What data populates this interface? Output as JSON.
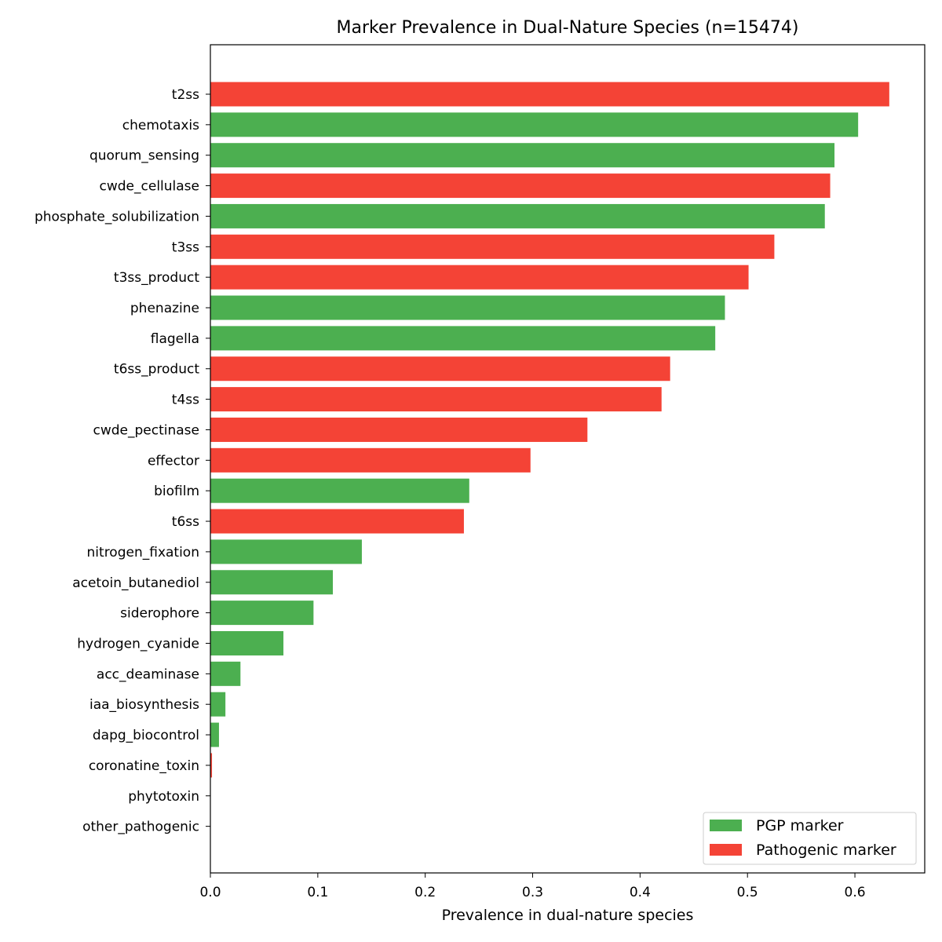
{
  "chart_data": {
    "type": "bar",
    "orientation": "horizontal",
    "title": "Marker Prevalence in Dual-Nature Species (n=15474)",
    "xlabel": "Prevalence in dual-nature species",
    "ylabel": "",
    "xlim": [
      0,
      0.665
    ],
    "xticks": [
      "0.0",
      "0.1",
      "0.2",
      "0.3",
      "0.4",
      "0.5",
      "0.6"
    ],
    "xtick_values": [
      0.0,
      0.1,
      0.2,
      0.3,
      0.4,
      0.5,
      0.6
    ],
    "grid": false,
    "legend_placement": "lower-right",
    "legend": [
      {
        "label": "PGP marker",
        "color": "#4caf50"
      },
      {
        "label": "Pathogenic marker",
        "color": "#f44336"
      }
    ],
    "bars": [
      {
        "label": "t2ss",
        "value": 0.632,
        "type": "Pathogenic marker"
      },
      {
        "label": "chemotaxis",
        "value": 0.603,
        "type": "PGP marker"
      },
      {
        "label": "quorum_sensing",
        "value": 0.581,
        "type": "PGP marker"
      },
      {
        "label": "cwde_cellulase",
        "value": 0.577,
        "type": "Pathogenic marker"
      },
      {
        "label": "phosphate_solubilization",
        "value": 0.572,
        "type": "PGP marker"
      },
      {
        "label": "t3ss",
        "value": 0.525,
        "type": "Pathogenic marker"
      },
      {
        "label": "t3ss_product",
        "value": 0.501,
        "type": "Pathogenic marker"
      },
      {
        "label": "phenazine",
        "value": 0.479,
        "type": "PGP marker"
      },
      {
        "label": "flagella",
        "value": 0.47,
        "type": "PGP marker"
      },
      {
        "label": "t6ss_product",
        "value": 0.428,
        "type": "Pathogenic marker"
      },
      {
        "label": "t4ss",
        "value": 0.42,
        "type": "Pathogenic marker"
      },
      {
        "label": "cwde_pectinase",
        "value": 0.351,
        "type": "Pathogenic marker"
      },
      {
        "label": "effector",
        "value": 0.298,
        "type": "Pathogenic marker"
      },
      {
        "label": "biofilm",
        "value": 0.241,
        "type": "PGP marker"
      },
      {
        "label": "t6ss",
        "value": 0.236,
        "type": "Pathogenic marker"
      },
      {
        "label": "nitrogen_fixation",
        "value": 0.141,
        "type": "PGP marker"
      },
      {
        "label": "acetoin_butanediol",
        "value": 0.114,
        "type": "PGP marker"
      },
      {
        "label": "siderophore",
        "value": 0.096,
        "type": "PGP marker"
      },
      {
        "label": "hydrogen_cyanide",
        "value": 0.068,
        "type": "PGP marker"
      },
      {
        "label": "acc_deaminase",
        "value": 0.028,
        "type": "PGP marker"
      },
      {
        "label": "iaa_biosynthesis",
        "value": 0.014,
        "type": "PGP marker"
      },
      {
        "label": "dapg_biocontrol",
        "value": 0.008,
        "type": "PGP marker"
      },
      {
        "label": "coronatine_toxin",
        "value": 0.0015,
        "type": "Pathogenic marker"
      },
      {
        "label": "phytotoxin",
        "value": 0.0,
        "type": "Pathogenic marker"
      },
      {
        "label": "other_pathogenic",
        "value": 0.0,
        "type": "Pathogenic marker"
      }
    ]
  }
}
